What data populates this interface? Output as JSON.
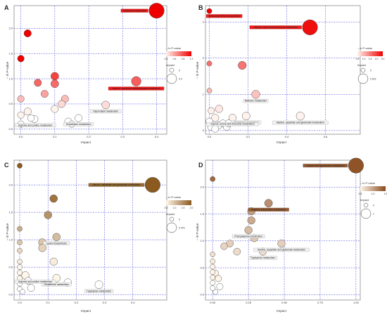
{
  "chart_data": [
    {
      "type": "scatter",
      "panel_label": "A",
      "xlabel": "Impact",
      "ylabel": "– ln P-value",
      "xlim": [
        -0.02,
        0.43
      ],
      "ylim": [
        -0.1,
        2.45
      ],
      "xticks": [
        0.0,
        0.1,
        0.2,
        0.3,
        0.4
      ],
      "xtick_labels": [
        "0.0",
        "0.1",
        "0.2",
        "0.3",
        "0.4"
      ],
      "yticks": [
        0.0,
        0.5,
        1.0,
        1.5,
        2.0
      ],
      "ytick_labels": [
        "0.0",
        "0.5",
        "1.0",
        "1.5",
        "2.0"
      ],
      "colorscale": {
        "title": "– ln P-value",
        "min": 0.4,
        "max": 1.3,
        "low": "#fff3ee",
        "high": "#ee0000",
        "ticks": [
          "0.4",
          "0.6",
          "0.8",
          "1.2"
        ]
      },
      "size_legend": {
        "title": "Impact",
        "labels": [
          "0",
          "0.4"
        ]
      },
      "points": [
        {
          "x": 0.4,
          "y": 2.35,
          "impact": 0.4,
          "label": "Galactose metabolism"
        },
        {
          "x": 0.34,
          "y": 0.95,
          "impact": 0.08,
          "label": "Alanine, aspartate and glutamate metabolism"
        },
        {
          "x": 0.25,
          "y": 0.48,
          "impact": 0.03,
          "label": "Glycerolipid metabolism"
        },
        {
          "x": 0.17,
          "y": 0.22,
          "impact": 0.02,
          "label": "Glutathione metabolism"
        },
        {
          "x": 0.04,
          "y": 0.2,
          "impact": 0.02,
          "label": "Arginine and proline metabolism"
        },
        {
          "x": 0.02,
          "y": 1.9,
          "impact": 0.02
        },
        {
          "x": 0.0,
          "y": 1.4,
          "impact": 0.01
        },
        {
          "x": 0.1,
          "y": 1.05,
          "impact": 0.03
        },
        {
          "x": 0.1,
          "y": 0.9,
          "impact": 0.03
        },
        {
          "x": 0.05,
          "y": 0.92,
          "impact": 0.02
        },
        {
          "x": 0.07,
          "y": 0.7,
          "impact": 0.02
        },
        {
          "x": 0.13,
          "y": 0.6,
          "impact": 0.02
        },
        {
          "x": 0.12,
          "y": 0.5,
          "impact": 0.02
        },
        {
          "x": 0.1,
          "y": 0.4,
          "impact": 0.02
        },
        {
          "x": 0.02,
          "y": 0.35,
          "impact": 0.02
        },
        {
          "x": 0.0,
          "y": 0.6,
          "impact": 0.01
        },
        {
          "x": 0.0,
          "y": 0.28,
          "impact": 0.01
        },
        {
          "x": 0.0,
          "y": 0.1,
          "impact": 0.01
        },
        {
          "x": 0.03,
          "y": 0.22,
          "impact": 0.01
        },
        {
          "x": 0.14,
          "y": 0.15,
          "impact": 0.02
        },
        {
          "x": 0.15,
          "y": 0.1,
          "impact": 0.01
        }
      ]
    },
    {
      "type": "scatter",
      "panel_label": "B",
      "xlabel": "Impact",
      "ylabel": "– ln P-value",
      "xlim": [
        -0.02,
        0.78
      ],
      "ylim": [
        -0.1,
        3.45
      ],
      "xticks": [
        0.0,
        0.2,
        0.4,
        0.6
      ],
      "xtick_labels": [
        "0.0",
        "0.2",
        "0.4",
        "0.6"
      ],
      "yticks": [
        0,
        1,
        2,
        3
      ],
      "ytick_labels": [
        "0",
        "1",
        "2",
        "3"
      ],
      "colorscale": {
        "title": "– ln P-value",
        "min": 0.5,
        "max": 3.0,
        "low": "#fff3ee",
        "high": "#ee0000",
        "ticks": [
          "0.5",
          "1.0",
          "1.5",
          "2.0",
          "3.0"
        ]
      },
      "size_legend": {
        "title": "Impact",
        "labels": [
          "0",
          "0.522"
        ]
      },
      "points": [
        {
          "x": 0.0,
          "y": 3.3,
          "impact": 0.0,
          "label": "Aminoacyl-tRNA biosynthesis"
        },
        {
          "x": 0.52,
          "y": 2.85,
          "impact": 0.52,
          "label": "Glycine, serine and threonine metabolism"
        },
        {
          "x": 0.17,
          "y": 1.8,
          "impact": 0.05
        },
        {
          "x": 0.0,
          "y": 1.85,
          "impact": 0.0
        },
        {
          "x": 0.24,
          "y": 1.0,
          "impact": 0.05,
          "label": "Methane metabolism"
        },
        {
          "x": 0.0,
          "y": 1.1,
          "impact": 0.0
        },
        {
          "x": 0.47,
          "y": 0.4,
          "impact": 0.05,
          "label": "Alanine, aspartate and glutamate metabolism"
        },
        {
          "x": 0.19,
          "y": 0.4,
          "impact": 0.04,
          "label": "Glutathione metabolism"
        },
        {
          "x": 0.12,
          "y": 0.35,
          "impact": 0.03,
          "label": "Glycine, serine and threonine metabolism"
        },
        {
          "x": 0.05,
          "y": 0.6,
          "impact": 0.03
        },
        {
          "x": 0.03,
          "y": 0.35,
          "impact": 0.03
        },
        {
          "x": 0.01,
          "y": 0.55,
          "impact": 0.01
        },
        {
          "x": 0.0,
          "y": 0.25,
          "impact": 0.02
        },
        {
          "x": 0.01,
          "y": 0.1,
          "impact": 0.02
        },
        {
          "x": 0.05,
          "y": 0.15,
          "impact": 0.02
        },
        {
          "x": 0.07,
          "y": 0.2,
          "impact": 0.02
        },
        {
          "x": 0.09,
          "y": 0.1,
          "impact": 0.02
        },
        {
          "x": 0.1,
          "y": 0.2,
          "impact": 0.02
        },
        {
          "x": 0.03,
          "y": 0.05,
          "impact": 0.02
        }
      ]
    },
    {
      "type": "scatter",
      "panel_label": "C",
      "xlabel": "Impact",
      "ylabel": "– ln P-value",
      "xlim": [
        -0.02,
        0.52
      ],
      "ylim": [
        -0.1,
        2.45
      ],
      "xticks": [
        0.0,
        0.1,
        0.2,
        0.3,
        0.4
      ],
      "xtick_labels": [
        "0.0",
        "0.1",
        "0.2",
        "0.3",
        "0.4"
      ],
      "yticks": [
        0.0,
        0.5,
        1.0,
        1.5,
        2.0
      ],
      "ytick_labels": [
        "0.0",
        "0.5",
        "1.0",
        "1.5",
        "2.0"
      ],
      "colorscale": {
        "title": "– ln P-value",
        "min": 0.5,
        "max": 2.0,
        "low": "#fff6ea",
        "high": "#8a5a1e",
        "ticks": [
          "0.5",
          "1.0",
          "1.5",
          "2.0"
        ]
      },
      "size_legend": {
        "title": "Impact",
        "labels": [
          "0",
          "0.475"
        ]
      },
      "points": [
        {
          "x": 0.47,
          "y": 2.0,
          "impact": 0.47,
          "label": "Alanine, aspartate and glutamate metabolism"
        },
        {
          "x": 0.0,
          "y": 2.35,
          "impact": 0.0
        },
        {
          "x": 0.12,
          "y": 1.75,
          "impact": 0.03
        },
        {
          "x": 0.1,
          "y": 1.45,
          "impact": 0.03
        },
        {
          "x": 0.13,
          "y": 1.05,
          "impact": 0.03,
          "label": "Lysine biosynthesis"
        },
        {
          "x": 0.08,
          "y": 0.95,
          "impact": 0.03
        },
        {
          "x": 0.08,
          "y": 0.85,
          "impact": 0.03
        },
        {
          "x": 0.0,
          "y": 1.2,
          "impact": 0.0
        },
        {
          "x": 0.0,
          "y": 0.95,
          "impact": 0.0
        },
        {
          "x": 0.0,
          "y": 0.8,
          "impact": 0.0
        },
        {
          "x": 0.12,
          "y": 0.6,
          "impact": 0.03
        },
        {
          "x": 0.13,
          "y": 0.3,
          "impact": 0.03,
          "label": "Glutathione metabolism"
        },
        {
          "x": 0.17,
          "y": 0.22,
          "impact": 0.03
        },
        {
          "x": 0.28,
          "y": 0.18,
          "impact": 0.04,
          "label": "Tryptophan metabolism"
        },
        {
          "x": 0.02,
          "y": 0.35,
          "impact": 0.03,
          "label": "Arginine and proline metabolism"
        },
        {
          "x": 0.0,
          "y": 0.6,
          "impact": 0.0
        },
        {
          "x": 0.0,
          "y": 0.5,
          "impact": 0.0
        },
        {
          "x": 0.0,
          "y": 0.4,
          "impact": 0.0
        },
        {
          "x": 0.0,
          "y": 0.3,
          "impact": 0.0
        },
        {
          "x": 0.0,
          "y": 0.2,
          "impact": 0.0
        },
        {
          "x": 0.0,
          "y": 0.1,
          "impact": 0.0
        },
        {
          "x": 0.01,
          "y": 0.05,
          "impact": 0.0
        },
        {
          "x": 0.04,
          "y": 0.12,
          "impact": 0.02
        },
        {
          "x": 0.03,
          "y": 0.25,
          "impact": 0.02
        }
      ]
    },
    {
      "type": "scatter",
      "panel_label": "D",
      "xlabel": "Impact",
      "ylabel": "– ln P-value",
      "xlim": [
        -0.05,
        1.03
      ],
      "ylim": [
        -0.1,
        2.5
      ],
      "xticks": [
        0.0,
        0.25,
        0.5,
        0.75,
        1.0
      ],
      "xtick_labels": [
        "0.00",
        "0.25",
        "0.50",
        "0.75",
        "1.00"
      ],
      "yticks": [
        0.0,
        0.5,
        1.0,
        1.5,
        2.0
      ],
      "ytick_labels": [
        "0.0",
        "0.5",
        "1.0",
        "1.5",
        "2.0"
      ],
      "colorscale": {
        "title": "– ln P-value",
        "min": 0.5,
        "max": 2.5,
        "low": "#fff6ea",
        "high": "#8a4a1e",
        "ticks": [
          "0.5",
          "1.0",
          "1.5"
        ]
      },
      "size_legend": {
        "title": "Impact",
        "labels": [
          "0",
          "1"
        ]
      },
      "points": [
        {
          "x": 1.0,
          "y": 2.4,
          "impact": 1.0,
          "label": "Taurine and hypotaurine metabolism"
        },
        {
          "x": 0.0,
          "y": 2.15,
          "impact": 0.0
        },
        {
          "x": 0.39,
          "y": 1.7,
          "impact": 0.08,
          "label": "Arginine and proline metabolism"
        },
        {
          "x": 0.27,
          "y": 1.55,
          "impact": 0.06
        },
        {
          "x": 0.27,
          "y": 1.38,
          "impact": 0.06
        },
        {
          "x": 0.25,
          "y": 1.2,
          "impact": 0.06,
          "label": "Phenylalanine metabolism"
        },
        {
          "x": 0.29,
          "y": 1.05,
          "impact": 0.05
        },
        {
          "x": 0.48,
          "y": 0.95,
          "impact": 0.06,
          "label": "Alanine, aspartate and glutamate metabolism"
        },
        {
          "x": 0.35,
          "y": 0.8,
          "impact": 0.05,
          "label": "Tryptophan metabolism"
        },
        {
          "x": 0.12,
          "y": 0.95,
          "impact": 0.04
        },
        {
          "x": 0.08,
          "y": 0.9,
          "impact": 0.03
        },
        {
          "x": 0.17,
          "y": 0.8,
          "impact": 0.04
        },
        {
          "x": 0.0,
          "y": 0.75,
          "impact": 0.0
        },
        {
          "x": 0.0,
          "y": 0.62,
          "impact": 0.0
        },
        {
          "x": 0.0,
          "y": 0.52,
          "impact": 0.0
        },
        {
          "x": 0.0,
          "y": 0.42,
          "impact": 0.0
        },
        {
          "x": 0.0,
          "y": 0.32,
          "impact": 0.0
        },
        {
          "x": 0.0,
          "y": 0.22,
          "impact": 0.0
        },
        {
          "x": 0.0,
          "y": 0.12,
          "impact": 0.0
        },
        {
          "x": 0.02,
          "y": 0.05,
          "impact": 0.0
        },
        {
          "x": 0.05,
          "y": 0.15,
          "impact": 0.02
        },
        {
          "x": 0.04,
          "y": 0.3,
          "impact": 0.02
        },
        {
          "x": 0.02,
          "y": 0.4,
          "impact": 0.01
        }
      ]
    }
  ]
}
